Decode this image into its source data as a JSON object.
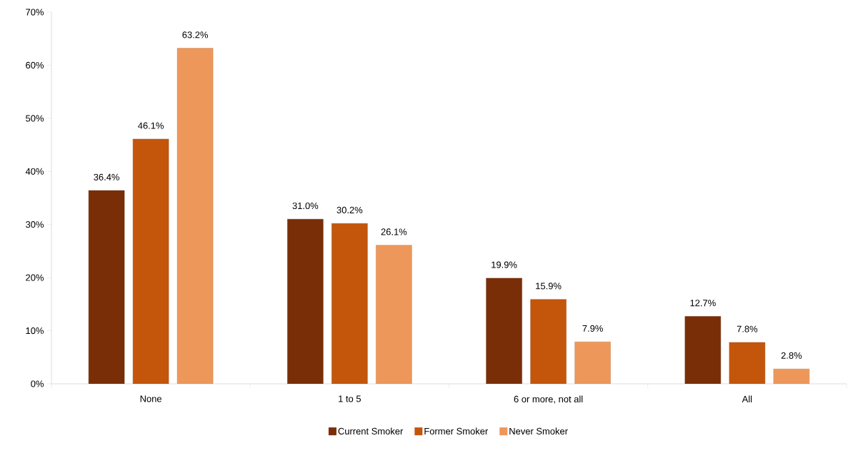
{
  "chart_data": {
    "type": "bar",
    "categories": [
      "None",
      "1 to 5",
      "6 or more, not all",
      "All"
    ],
    "series": [
      {
        "name": "Current Smoker",
        "color": "#7a2e08",
        "values": [
          36.4,
          31.0,
          19.9,
          12.7
        ],
        "value_labels": [
          "36.4%",
          "31.0%",
          "19.9%",
          "12.7%"
        ]
      },
      {
        "name": "Former Smoker",
        "color": "#c4560c",
        "values": [
          46.1,
          30.2,
          15.9,
          7.8
        ],
        "value_labels": [
          "46.1%",
          "30.2%",
          "15.9%",
          "7.8%"
        ]
      },
      {
        "name": "Never Smoker",
        "color": "#ee975a",
        "values": [
          63.2,
          26.1,
          7.9,
          2.8
        ],
        "value_labels": [
          "63.2%",
          "26.1%",
          "7.9%",
          "2.8%"
        ]
      }
    ],
    "ylim": [
      0,
      70
    ],
    "yticks": [
      {
        "value": 0,
        "label": "0%"
      },
      {
        "value": 10,
        "label": "10%"
      },
      {
        "value": 20,
        "label": "20%"
      },
      {
        "value": 30,
        "label": "30%"
      },
      {
        "value": 40,
        "label": "40%"
      },
      {
        "value": 50,
        "label": "50%"
      },
      {
        "value": 60,
        "label": "60%"
      },
      {
        "value": 70,
        "label": "70%"
      }
    ],
    "legend": "bottom"
  }
}
